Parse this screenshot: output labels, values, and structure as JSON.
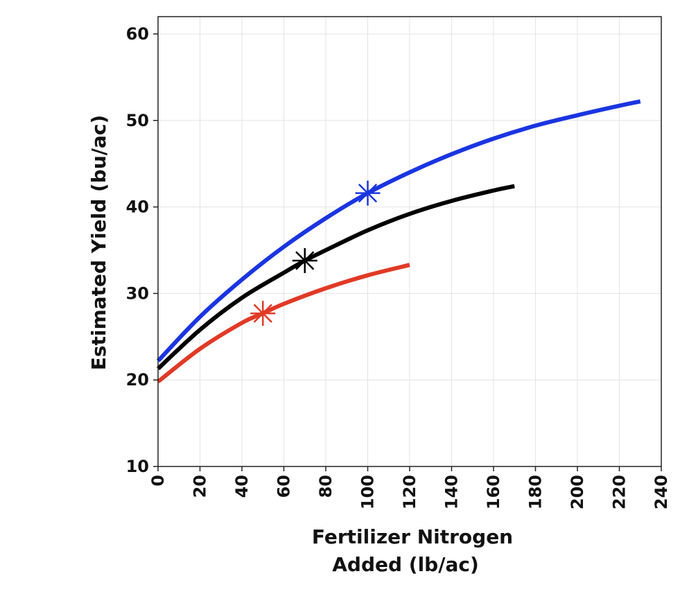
{
  "chart_data": {
    "type": "line",
    "title": "",
    "xlabel_lines": [
      "Fertilizer Nitrogen",
      "Added (lb/ac)"
    ],
    "ylabel": "Estimated Yield (bu/ac)",
    "xlim": [
      0,
      240
    ],
    "ylim": [
      10,
      62
    ],
    "xticks": [
      "0",
      "20",
      "40",
      "60",
      "80",
      "100",
      "120",
      "140",
      "160",
      "180",
      "200",
      "220",
      "240"
    ],
    "yticks": [
      "10",
      "20",
      "30",
      "40",
      "50",
      "60"
    ],
    "grid": true,
    "series": [
      {
        "name": "blue",
        "color": "#1a35e0",
        "x": [
          0,
          20,
          40,
          60,
          80,
          100,
          120,
          140,
          160,
          180,
          200,
          220,
          230
        ],
        "y": [
          22.2,
          27.3,
          31.6,
          35.4,
          38.7,
          41.6,
          44.0,
          46.1,
          47.9,
          49.4,
          50.6,
          51.7,
          52.2
        ],
        "marker": {
          "x": 100,
          "y": 41.6
        }
      },
      {
        "name": "black",
        "color": "#000000",
        "x": [
          0,
          20,
          40,
          60,
          70,
          80,
          100,
          120,
          140,
          160,
          170
        ],
        "y": [
          21.3,
          25.8,
          29.5,
          32.4,
          33.8,
          35.0,
          37.3,
          39.2,
          40.7,
          41.9,
          42.4
        ],
        "marker": {
          "x": 70,
          "y": 33.8
        }
      },
      {
        "name": "red",
        "color": "#e03a26",
        "x": [
          0,
          20,
          40,
          50,
          60,
          80,
          100,
          120
        ],
        "y": [
          19.8,
          23.6,
          26.6,
          27.7,
          28.8,
          30.6,
          32.1,
          33.3
        ],
        "marker": {
          "x": 50,
          "y": 27.7
        }
      }
    ]
  }
}
